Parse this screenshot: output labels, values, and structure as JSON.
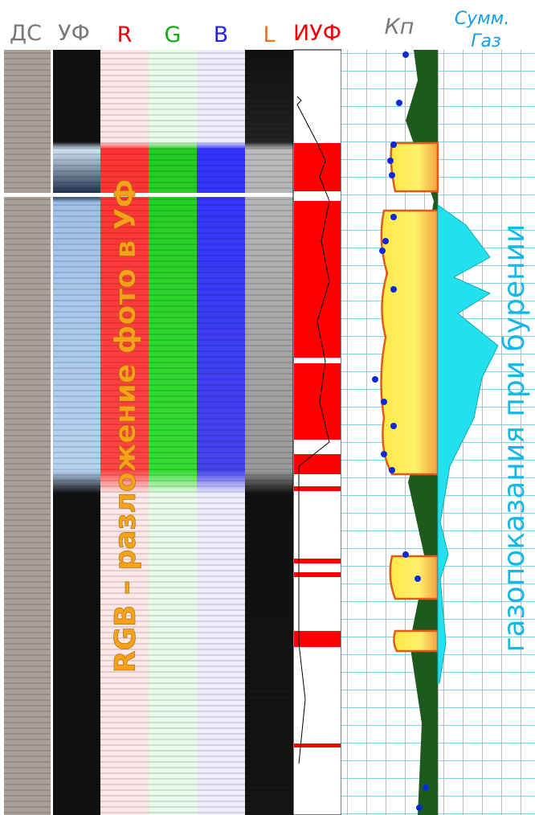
{
  "header": {
    "columns": [
      "ДС",
      "УФ",
      "R",
      "G",
      "B",
      "L",
      "ИУФ",
      "Кп"
    ],
    "gas": [
      "Сумм.",
      "Газ"
    ]
  },
  "annotations": {
    "rgb": "RGB – разложение фото в УФ",
    "gas": "газопоказания при бурении"
  }
}
